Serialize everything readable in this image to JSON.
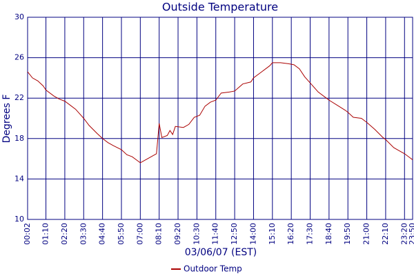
{
  "chart_data": {
    "type": "line",
    "title": "Outside Temperature",
    "x_label": "03/06/07 (EST)",
    "y_label": "Degrees F",
    "x": [
      2,
      20,
      40,
      60,
      70,
      100,
      120,
      140,
      160,
      180,
      200,
      210,
      230,
      260,
      280,
      300,
      320,
      350,
      370,
      390,
      410,
      420,
      440,
      460,
      480,
      490,
      500,
      520,
      530,
      540,
      550,
      580,
      600,
      620,
      640,
      660,
      680,
      700,
      720,
      750,
      770,
      800,
      830,
      840,
      870,
      900,
      910,
      940,
      970,
      990,
      1010,
      1030,
      1050,
      1080,
      1110,
      1120,
      1150,
      1180,
      1190,
      1210,
      1240,
      1260,
      1290,
      1320,
      1330,
      1360,
      1380,
      1400,
      1420,
      1430
    ],
    "series": [
      {
        "name": "Outdoor Temp",
        "color": "#aa0000",
        "values": [
          24.6,
          24.0,
          23.7,
          23.2,
          22.8,
          22.2,
          21.9,
          21.7,
          21.3,
          20.9,
          20.3,
          20.0,
          19.3,
          18.5,
          18.0,
          17.6,
          17.3,
          16.9,
          16.4,
          16.2,
          15.8,
          15.6,
          15.9,
          16.2,
          16.5,
          19.5,
          18.1,
          18.3,
          18.8,
          18.4,
          19.2,
          19.1,
          19.4,
          20.1,
          20.3,
          21.2,
          21.6,
          21.8,
          22.5,
          22.6,
          22.7,
          23.4,
          23.6,
          24.0,
          24.6,
          25.2,
          25.5,
          25.5,
          25.4,
          25.3,
          24.9,
          24.1,
          23.5,
          22.6,
          22.0,
          21.8,
          21.3,
          20.8,
          20.6,
          20.1,
          20.0,
          19.6,
          18.9,
          18.1,
          17.9,
          17.1,
          16.8,
          16.5,
          16.1,
          15.9
        ]
      }
    ],
    "xlim": [
      2,
      1430
    ],
    "xticks": [
      {
        "value": 2,
        "label": "00:02"
      },
      {
        "value": 70,
        "label": "01:10"
      },
      {
        "value": 140,
        "label": "02:20"
      },
      {
        "value": 210,
        "label": "03:30"
      },
      {
        "value": 280,
        "label": "04:40"
      },
      {
        "value": 350,
        "label": "05:50"
      },
      {
        "value": 420,
        "label": "07:00"
      },
      {
        "value": 490,
        "label": "08:10"
      },
      {
        "value": 560,
        "label": "09:20"
      },
      {
        "value": 630,
        "label": "10:30"
      },
      {
        "value": 700,
        "label": "11:40"
      },
      {
        "value": 770,
        "label": "12:50"
      },
      {
        "value": 840,
        "label": "14:00"
      },
      {
        "value": 910,
        "label": "15:10"
      },
      {
        "value": 980,
        "label": "16:20"
      },
      {
        "value": 1050,
        "label": "17:30"
      },
      {
        "value": 1120,
        "label": "18:40"
      },
      {
        "value": 1190,
        "label": "19:50"
      },
      {
        "value": 1260,
        "label": "21:00"
      },
      {
        "value": 1330,
        "label": "22:10"
      },
      {
        "value": 1400,
        "label": "23:20"
      },
      {
        "value": 1430,
        "label": "23:50"
      }
    ],
    "ylim": [
      10,
      30
    ],
    "yticks": [
      10,
      14,
      18,
      22,
      26,
      30
    ],
    "grid": true
  }
}
